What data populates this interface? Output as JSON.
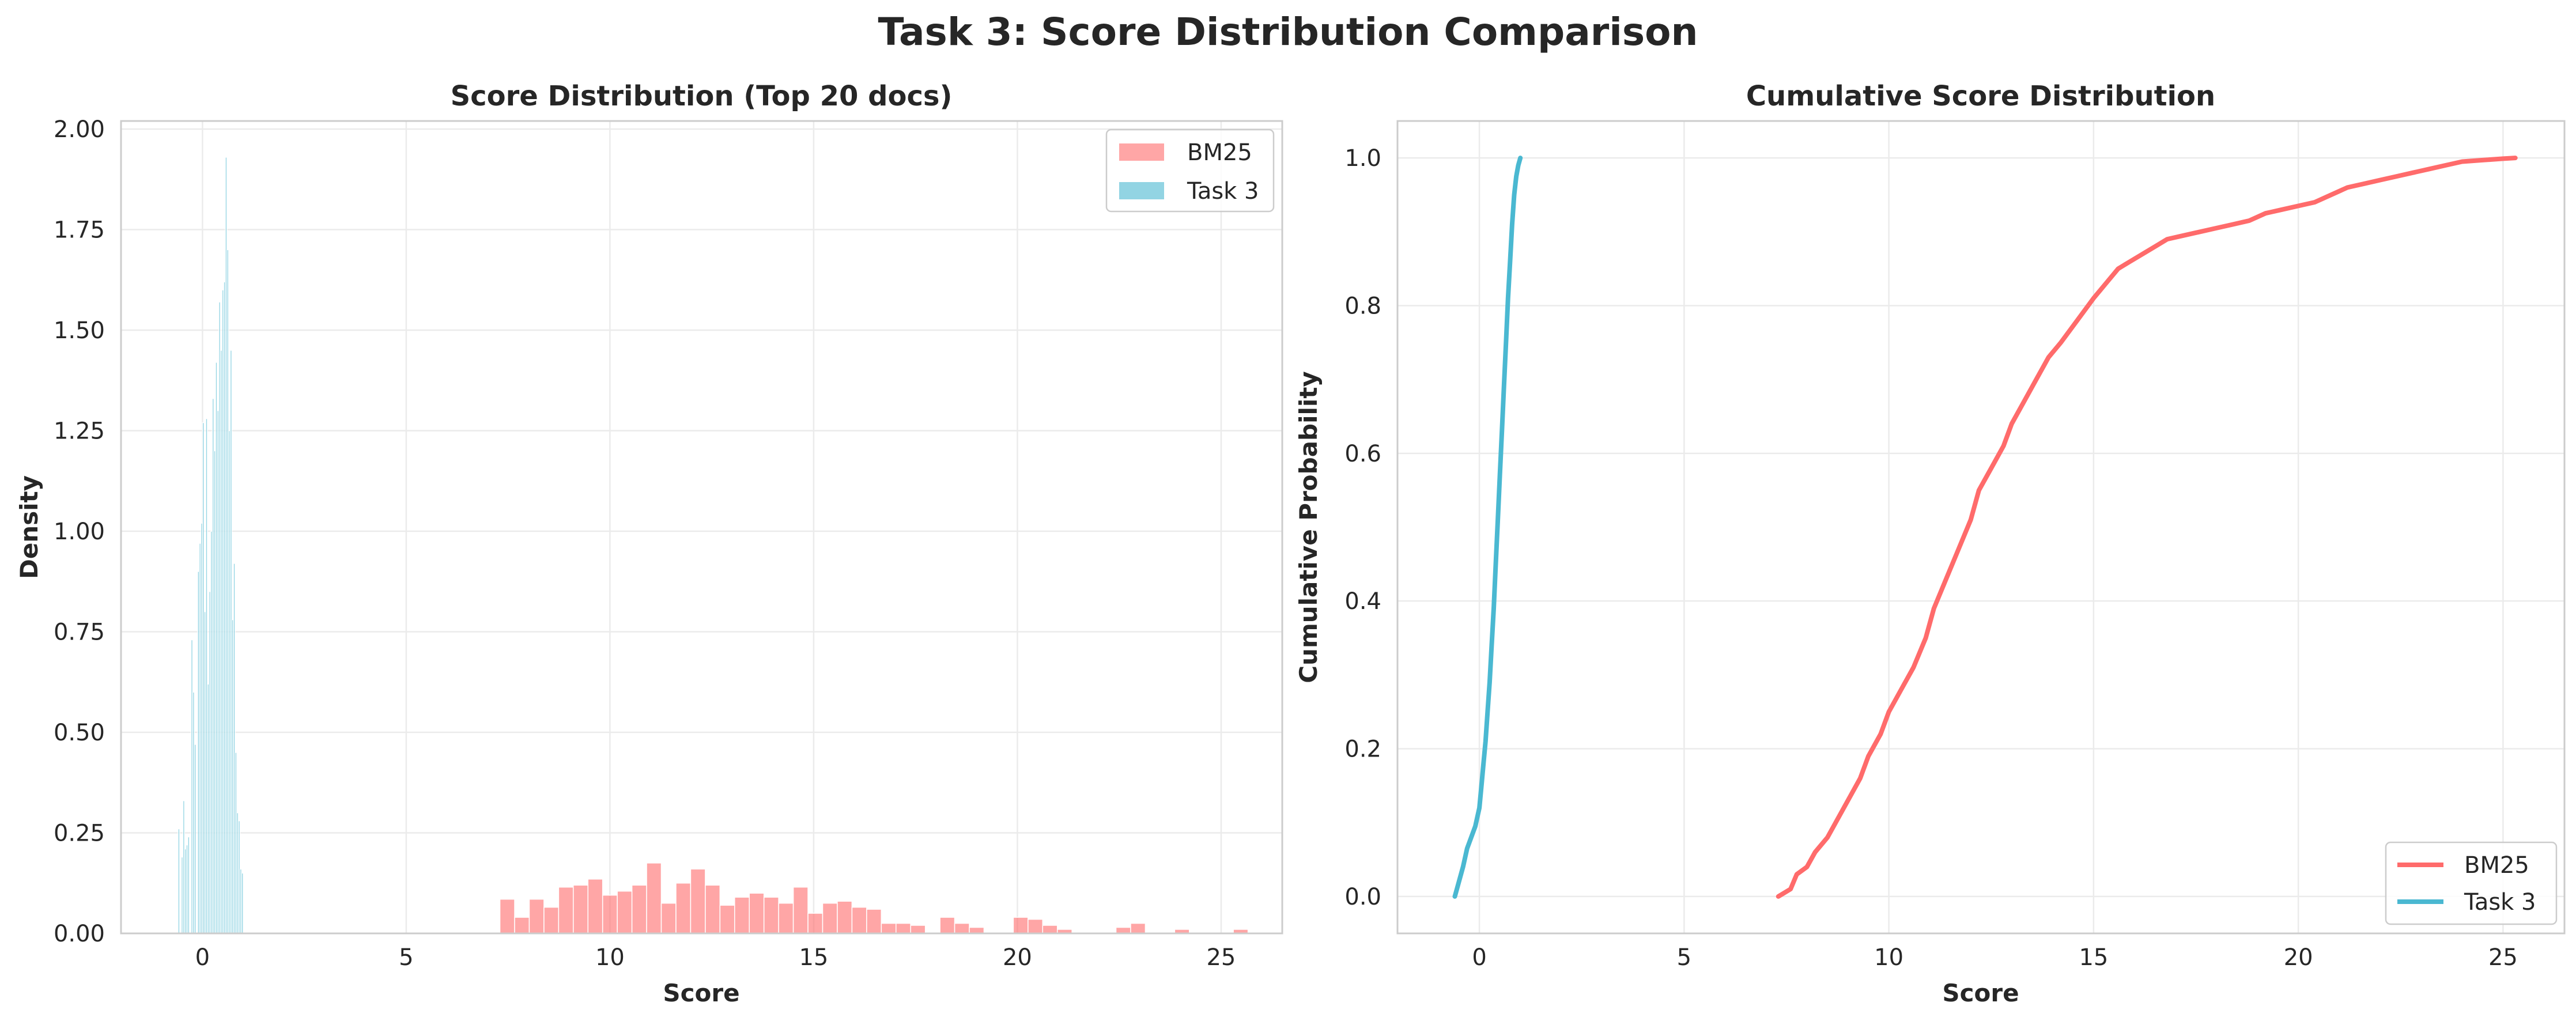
{
  "figure_title": "Task 3: Score Distribution Comparison",
  "colors": {
    "bm25": "#FF6B6B",
    "task3": "#4AB8D1",
    "grid": "#EBEBEB",
    "spine": "#CCCCCC",
    "text": "#262626"
  },
  "chart_data": [
    {
      "type": "bar",
      "subtype": "histogram",
      "title": "Score Distribution (Top 20 docs)",
      "xlabel": "Score",
      "ylabel": "Density",
      "xlim": [
        -2.0,
        26.5
      ],
      "ylim": [
        0,
        2.02
      ],
      "xticks": [
        0,
        5,
        10,
        15,
        20,
        25
      ],
      "yticks": [
        0.0,
        0.25,
        0.5,
        0.75,
        1.0,
        1.25,
        1.5,
        1.75,
        2.0
      ],
      "ytick_labels": [
        "0.00",
        "0.25",
        "0.50",
        "0.75",
        "1.00",
        "1.25",
        "1.50",
        "1.75",
        "2.00"
      ],
      "grid": true,
      "legend_position": "upper right",
      "series": [
        {
          "name": "BM25",
          "color_key": "bm25",
          "alpha": 0.6,
          "bin_width": 0.36,
          "x": [
            7.3,
            7.66,
            8.02,
            8.38,
            8.74,
            9.1,
            9.46,
            9.82,
            10.18,
            10.54,
            10.9,
            11.26,
            11.62,
            11.98,
            12.34,
            12.7,
            13.06,
            13.42,
            13.78,
            14.14,
            14.5,
            14.86,
            15.22,
            15.58,
            15.94,
            16.3,
            16.66,
            17.02,
            17.38,
            17.74,
            18.1,
            18.46,
            18.82,
            19.18,
            19.54,
            19.9,
            20.26,
            20.62,
            20.98,
            21.34,
            21.7,
            22.06,
            22.42,
            22.78,
            23.14,
            23.5,
            23.86,
            24.22,
            24.58,
            24.94,
            25.3
          ],
          "values": [
            0.085,
            0.04,
            0.085,
            0.065,
            0.115,
            0.12,
            0.135,
            0.095,
            0.105,
            0.12,
            0.175,
            0.075,
            0.125,
            0.16,
            0.12,
            0.07,
            0.09,
            0.1,
            0.09,
            0.075,
            0.115,
            0.05,
            0.075,
            0.08,
            0.065,
            0.06,
            0.025,
            0.025,
            0.02,
            0.0,
            0.04,
            0.025,
            0.015,
            0.0,
            0.0,
            0.04,
            0.035,
            0.02,
            0.01,
            0.0,
            0.0,
            0.0,
            0.015,
            0.025,
            0.0,
            0.0,
            0.01,
            0.0,
            0.0,
            0.0,
            0.01
          ]
        },
        {
          "name": "Task 3",
          "color_key": "task3",
          "alpha": 0.6,
          "bin_width": 0.04,
          "x": [
            -0.6,
            -0.56,
            -0.52,
            -0.48,
            -0.44,
            -0.4,
            -0.36,
            -0.32,
            -0.28,
            -0.24,
            -0.2,
            -0.16,
            -0.12,
            -0.08,
            -0.04,
            0.0,
            0.04,
            0.08,
            0.12,
            0.16,
            0.2,
            0.24,
            0.28,
            0.32,
            0.36,
            0.4,
            0.44,
            0.48,
            0.52,
            0.56,
            0.6,
            0.64,
            0.68,
            0.72,
            0.76,
            0.8,
            0.84,
            0.88,
            0.92,
            0.96
          ],
          "values": [
            0.26,
            0.0,
            0.19,
            0.33,
            0.21,
            0.22,
            0.24,
            0.0,
            0.73,
            0.6,
            0.47,
            0.0,
            0.9,
            0.97,
            1.02,
            1.27,
            0.8,
            1.28,
            0.62,
            0.85,
            1.0,
            1.33,
            1.2,
            1.42,
            1.3,
            1.57,
            1.45,
            1.6,
            1.62,
            1.93,
            1.7,
            1.25,
            1.45,
            0.78,
            0.92,
            0.45,
            0.3,
            0.28,
            0.16,
            0.15
          ]
        }
      ]
    },
    {
      "type": "line",
      "title": "Cumulative Score Distribution",
      "xlabel": "Score",
      "ylabel": "Cumulative Probability",
      "xlim": [
        -2.0,
        26.5
      ],
      "ylim": [
        -0.05,
        1.05
      ],
      "xticks": [
        0,
        5,
        10,
        15,
        20,
        25
      ],
      "yticks": [
        0.0,
        0.2,
        0.4,
        0.6,
        0.8,
        1.0
      ],
      "ytick_labels": [
        "0.0",
        "0.2",
        "0.4",
        "0.6",
        "0.8",
        "1.0"
      ],
      "grid": true,
      "legend_position": "lower right",
      "series": [
        {
          "name": "BM25",
          "color_key": "bm25",
          "x": [
            7.3,
            7.6,
            7.75,
            8.0,
            8.2,
            8.5,
            8.8,
            9.0,
            9.3,
            9.5,
            9.8,
            10.0,
            10.3,
            10.6,
            10.9,
            11.1,
            11.4,
            11.7,
            12.0,
            12.2,
            12.5,
            12.8,
            13.0,
            13.3,
            13.6,
            13.9,
            14.2,
            14.6,
            15.0,
            15.3,
            15.6,
            15.9,
            16.2,
            16.5,
            16.8,
            17.2,
            17.6,
            18.0,
            18.4,
            18.8,
            19.2,
            19.6,
            20.0,
            20.4,
            20.8,
            21.2,
            21.6,
            22.0,
            22.4,
            22.8,
            23.2,
            23.6,
            24.0,
            24.5,
            25.0,
            25.3
          ],
          "values": [
            0.0,
            0.01,
            0.03,
            0.04,
            0.06,
            0.08,
            0.11,
            0.13,
            0.16,
            0.19,
            0.22,
            0.25,
            0.28,
            0.31,
            0.35,
            0.39,
            0.43,
            0.47,
            0.51,
            0.55,
            0.58,
            0.61,
            0.64,
            0.67,
            0.7,
            0.73,
            0.75,
            0.78,
            0.81,
            0.83,
            0.85,
            0.86,
            0.87,
            0.88,
            0.89,
            0.895,
            0.9,
            0.905,
            0.91,
            0.915,
            0.925,
            0.93,
            0.935,
            0.94,
            0.95,
            0.96,
            0.965,
            0.97,
            0.975,
            0.98,
            0.985,
            0.99,
            0.995,
            0.997,
            0.999,
            1.0
          ]
        },
        {
          "name": "Task 3",
          "color_key": "task3",
          "x": [
            -0.6,
            -0.5,
            -0.4,
            -0.3,
            -0.2,
            -0.1,
            0.0,
            0.05,
            0.1,
            0.15,
            0.2,
            0.25,
            0.3,
            0.35,
            0.4,
            0.45,
            0.5,
            0.55,
            0.6,
            0.65,
            0.7,
            0.75,
            0.8,
            0.85,
            0.9,
            0.95,
            1.0
          ],
          "values": [
            0.0,
            0.02,
            0.04,
            0.065,
            0.08,
            0.095,
            0.12,
            0.15,
            0.18,
            0.21,
            0.25,
            0.29,
            0.34,
            0.39,
            0.45,
            0.51,
            0.57,
            0.63,
            0.69,
            0.75,
            0.81,
            0.86,
            0.91,
            0.95,
            0.975,
            0.99,
            1.0
          ]
        }
      ]
    }
  ]
}
